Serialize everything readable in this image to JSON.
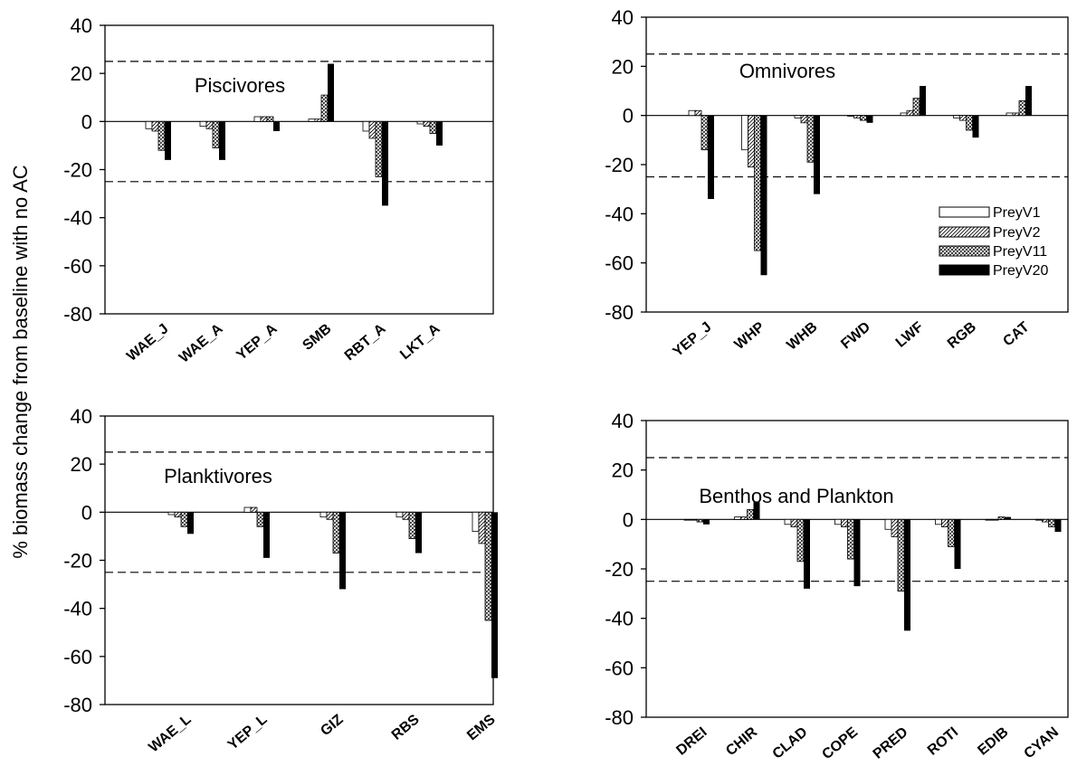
{
  "ylabel": "% biomass change from baseline with no AC",
  "legend": [
    {
      "label": "PreyV1",
      "pattern": "open"
    },
    {
      "label": "PreyV2",
      "pattern": "diagonal"
    },
    {
      "label": "PreyV11",
      "pattern": "crosshatch"
    },
    {
      "label": "PreyV20",
      "pattern": "solid"
    }
  ],
  "colors": {
    "line": "#000000",
    "background": "#ffffff",
    "solid": "#000000"
  },
  "chart_data": [
    {
      "type": "bar",
      "title": "Piscivores",
      "categories": [
        "WAE_J",
        "WAE_A",
        "YEP_A",
        "SMB",
        "RBT_A",
        "LKT_A"
      ],
      "ylim": [
        -80,
        40
      ],
      "yticks": [
        40,
        20,
        0,
        -20,
        -40,
        -60,
        -80
      ],
      "reference_lines": [
        25,
        -25
      ],
      "series": [
        {
          "name": "PreyV1",
          "values": [
            -3,
            -2,
            2,
            1,
            -4,
            -1
          ]
        },
        {
          "name": "PreyV2",
          "values": [
            -4,
            -3,
            2,
            1,
            -7,
            -2
          ]
        },
        {
          "name": "PreyV11",
          "values": [
            -12,
            -11,
            2,
            11,
            -23,
            -5
          ]
        },
        {
          "name": "PreyV20",
          "values": [
            -16,
            -16,
            -4,
            24,
            -35,
            -10
          ]
        }
      ]
    },
    {
      "type": "bar",
      "title": "Omnivores",
      "categories": [
        "YEP_J",
        "WHP",
        "WHB",
        "FWD",
        "LWF",
        "RGB",
        "CAT"
      ],
      "ylim": [
        -80,
        40
      ],
      "yticks": [
        40,
        20,
        0,
        -20,
        -40,
        -60,
        -80
      ],
      "reference_lines": [
        25,
        -25
      ],
      "series": [
        {
          "name": "PreyV1",
          "values": [
            2,
            -14,
            -1,
            0,
            1,
            -1,
            1
          ]
        },
        {
          "name": "PreyV2",
          "values": [
            2,
            -21,
            -3,
            -1,
            2,
            -2,
            1
          ]
        },
        {
          "name": "PreyV11",
          "values": [
            -14,
            -55,
            -19,
            -2,
            7,
            -6,
            6
          ]
        },
        {
          "name": "PreyV20",
          "values": [
            -34,
            -65,
            -32,
            -3,
            12,
            -9,
            12
          ]
        }
      ]
    },
    {
      "type": "bar",
      "title": "Planktivores",
      "categories": [
        "WAE_L",
        "YEP_L",
        "GIZ",
        "RBS",
        "EMS"
      ],
      "ylim": [
        -80,
        40
      ],
      "yticks": [
        40,
        20,
        0,
        -20,
        -40,
        -60,
        -80
      ],
      "reference_lines": [
        25,
        -25
      ],
      "series": [
        {
          "name": "PreyV1",
          "values": [
            -1,
            2,
            -2,
            -2,
            -8
          ]
        },
        {
          "name": "PreyV2",
          "values": [
            -2,
            2,
            -3,
            -3,
            -13
          ]
        },
        {
          "name": "PreyV11",
          "values": [
            -6,
            -6,
            -17,
            -11,
            -45
          ]
        },
        {
          "name": "PreyV20",
          "values": [
            -9,
            -19,
            -32,
            -17,
            -69
          ]
        }
      ]
    },
    {
      "type": "bar",
      "title": "Benthos and Plankton",
      "categories": [
        "DREI",
        "CHIR",
        "CLAD",
        "COPE",
        "PRED",
        "ROTI",
        "EDIB",
        "CYAN"
      ],
      "ylim": [
        -80,
        40
      ],
      "yticks": [
        40,
        20,
        0,
        -20,
        -40,
        -60,
        -80
      ],
      "reference_lines": [
        25,
        -25
      ],
      "series": [
        {
          "name": "PreyV1",
          "values": [
            0,
            1,
            -2,
            -2,
            -4,
            -2,
            0,
            0
          ]
        },
        {
          "name": "PreyV2",
          "values": [
            0,
            1,
            -3,
            -3,
            -7,
            -3,
            0,
            -1
          ]
        },
        {
          "name": "PreyV11",
          "values": [
            -1,
            4,
            -17,
            -16,
            -29,
            -11,
            1,
            -3
          ]
        },
        {
          "name": "PreyV20",
          "values": [
            -2,
            7,
            -28,
            -27,
            -45,
            -20,
            1,
            -5
          ]
        }
      ]
    }
  ]
}
